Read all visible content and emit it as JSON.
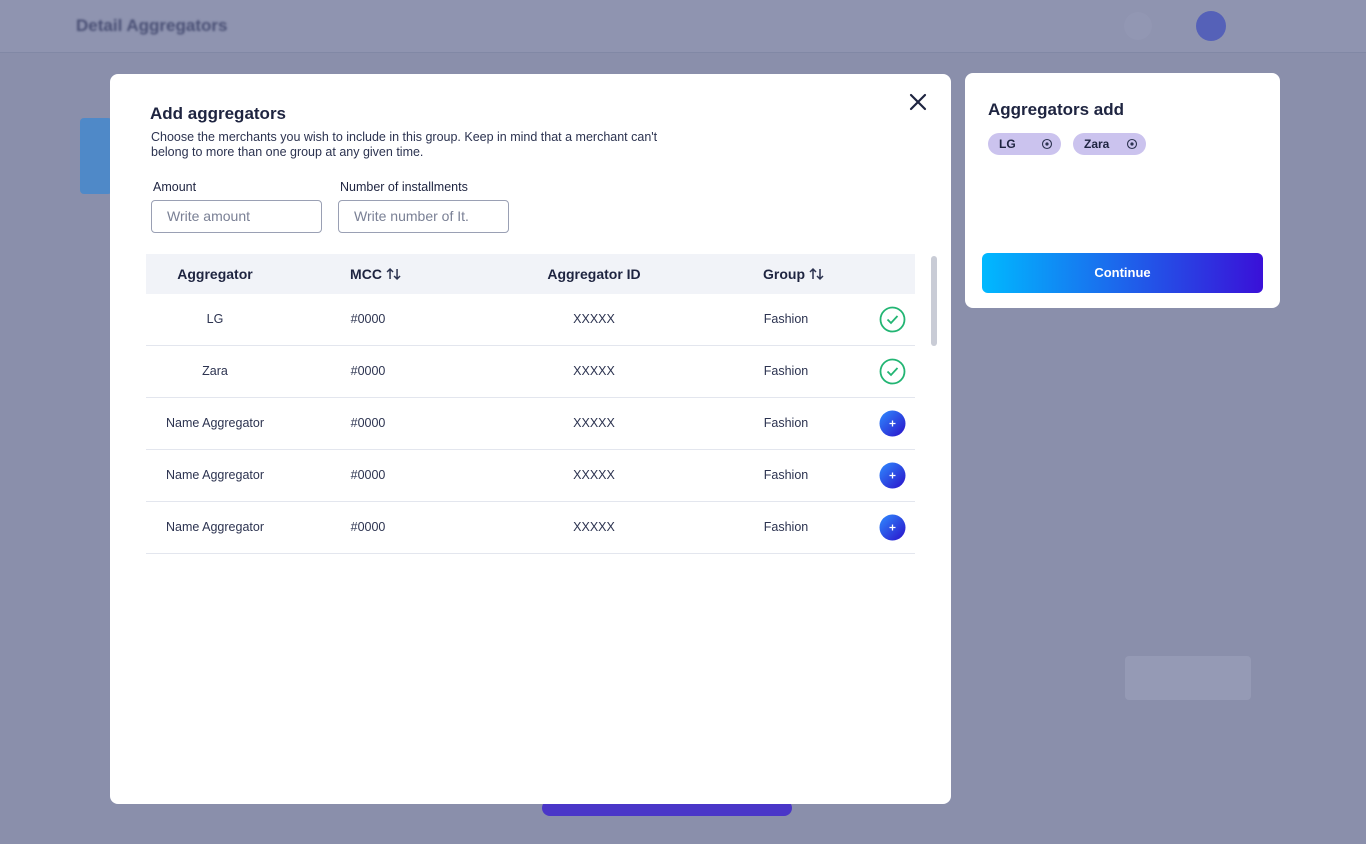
{
  "header": {
    "title": "Detail Aggregators"
  },
  "modal": {
    "title": "Add aggregators",
    "description": "Choose the merchants you wish to include in this group. Keep in mind that a merchant can't belong to more than one group at any given time.",
    "fields": [
      {
        "label": "Amount",
        "placeholder": "Write amount"
      },
      {
        "label": "Number of installments",
        "placeholder": "Write number of It."
      }
    ],
    "table": {
      "columns": [
        {
          "label": "Aggregator",
          "sortable": false
        },
        {
          "label": "MCC",
          "sortable": true
        },
        {
          "label": "Aggregator ID",
          "sortable": false
        },
        {
          "label": "Group",
          "sortable": true
        }
      ],
      "rows": [
        {
          "cells": [
            "LG",
            "#0000",
            "XXXXX",
            "Fashion"
          ],
          "selected": true
        },
        {
          "cells": [
            "Zara",
            "#0000",
            "XXXXX",
            "Fashion"
          ],
          "selected": true
        },
        {
          "cells": [
            "Name Aggregator",
            "#0000",
            "XXXXX",
            "Fashion"
          ],
          "selected": false
        },
        {
          "cells": [
            "Name Aggregator",
            "#0000",
            "XXXXX",
            "Fashion"
          ],
          "selected": false
        },
        {
          "cells": [
            "Name Aggregator",
            "#0000",
            "XXXXX",
            "Fashion"
          ],
          "selected": false
        }
      ]
    }
  },
  "summary": {
    "title": "Aggregators add",
    "chips": [
      "LG",
      "Zara"
    ],
    "button": "Continue"
  }
}
